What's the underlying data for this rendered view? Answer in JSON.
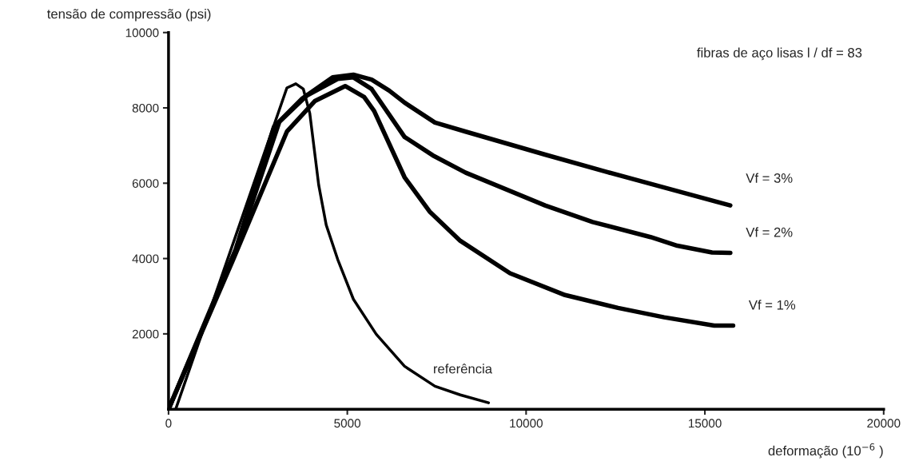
{
  "chart_data": {
    "type": "line",
    "ylabel": "tensão de compressão (psi)",
    "xlabel": "deformação (10$^{−6}$ )",
    "annotations": [
      "fibras de aço lisas l / df = 83"
    ],
    "xlim": [
      0,
      20000
    ],
    "xticks": [
      0,
      5000,
      10000,
      15000,
      20000
    ],
    "ylim": [
      0,
      10000
    ],
    "yticks": [
      2000,
      4000,
      6000,
      8000,
      10000
    ],
    "grid": false,
    "legend": false,
    "marker": "none",
    "line_style": "solid",
    "series": [
      {
        "name": "Vf = 3%",
        "color": "#000000",
        "x": [
          0,
          1880,
          2950,
          3740,
          4590,
          5170,
          5680,
          6170,
          6600,
          7450,
          8310,
          10530,
          12290,
          14000,
          15710
        ],
        "values": [
          0,
          4250,
          7500,
          8250,
          8810,
          8880,
          8750,
          8460,
          8140,
          7610,
          7370,
          6760,
          6290,
          5850,
          5410
        ]
      },
      {
        "name": "Vf = 2%",
        "color": "#000000",
        "x": [
          0,
          1880,
          3100,
          3870,
          4730,
          5170,
          5680,
          6600,
          7390,
          8310,
          10530,
          11860,
          13480,
          14230,
          15200,
          15710
        ],
        "values": [
          0,
          4190,
          7630,
          8330,
          8770,
          8810,
          8500,
          7230,
          6740,
          6280,
          5410,
          4970,
          4570,
          4340,
          4160,
          4150
        ]
      },
      {
        "name": "Vf = 1%",
        "color": "#000000",
        "x": [
          0,
          1810,
          3310,
          4090,
          4940,
          5470,
          5750,
          6600,
          7300,
          8160,
          9550,
          11090,
          12570,
          13860,
          15260,
          15790
        ],
        "values": [
          0,
          3980,
          7370,
          8180,
          8580,
          8290,
          7920,
          6160,
          5250,
          4470,
          3610,
          3030,
          2690,
          2440,
          2220,
          2220
        ]
      },
      {
        "name": "referência",
        "color": "#000000",
        "x": [
          200,
          3310,
          3560,
          3770,
          3950,
          4200,
          4410,
          4730,
          5170,
          5810,
          6600,
          7450,
          8160,
          8950
        ],
        "values": [
          0,
          8530,
          8640,
          8500,
          7860,
          5950,
          4890,
          3980,
          2920,
          1990,
          1140,
          610,
          380,
          170
        ]
      }
    ]
  }
}
